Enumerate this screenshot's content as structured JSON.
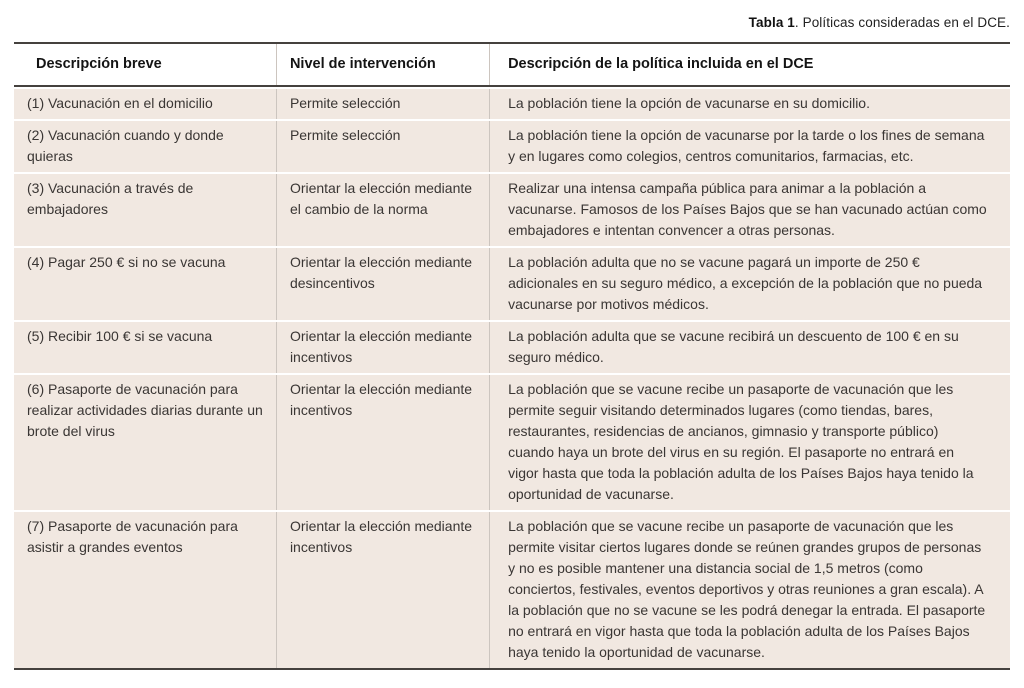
{
  "caption": {
    "label": "Tabla 1",
    "text": ". Políticas consideradas en el DCE."
  },
  "table": {
    "columns": [
      "Descripción breve",
      "Nivel de intervención",
      "Descripción de la política incluida en el DCE"
    ],
    "rows": [
      {
        "breve": "(1) Vacunación en el domicilio",
        "nivel": "Permite selección",
        "descripcion": "La población tiene la opción de vacunarse en su domicilio."
      },
      {
        "breve": "(2) Vacunación cuando y donde quieras",
        "nivel": "Permite selección",
        "descripcion": "La población tiene la opción de vacunarse por la tarde o los fines de semana y en lugares como colegios, centros comunitarios, farmacias, etc."
      },
      {
        "breve": "(3) Vacunación a través de embajadores",
        "nivel": "Orientar la elección mediante el cambio de la norma",
        "descripcion": "Realizar una intensa campaña pública para animar a la población a vacunarse. Famosos de los Países Bajos que se han vacunado actúan como embajadores e intentan convencer a otras personas."
      },
      {
        "breve": "(4) Pagar 250 € si no se vacuna",
        "nivel": "Orientar la elección mediante desincentivos",
        "descripcion": "La población adulta que no se vacune pagará un importe de 250 € adicionales en su seguro médico, a excepción de la población que no pueda vacunarse por motivos médicos."
      },
      {
        "breve": "(5) Recibir 100 € si se vacuna",
        "nivel": "Orientar la elección mediante incentivos",
        "descripcion": "La población adulta que se vacune recibirá un descuento de 100 € en su seguro médico."
      },
      {
        "breve": "(6) Pasaporte de vacunación para realizar actividades diarias durante un brote del virus",
        "nivel": "Orientar la elección mediante incentivos",
        "descripcion": "La población que se vacune recibe un pasaporte de vacunación que les permite seguir visitando determinados lugares (como tiendas, bares, restaurantes, residencias de ancianos, gimnasio y transporte público) cuando haya un brote del virus en su región. El pasaporte no entrará en vigor hasta que toda la población adulta de los Países Bajos haya tenido la oportunidad de vacunarse."
      },
      {
        "breve": "(7) Pasaporte de vacunación para asistir a grandes eventos",
        "nivel": "Orientar la elección mediante incentivos",
        "descripcion": "La población que se vacune recibe un pasaporte de vacunación que les permite visitar ciertos lugares donde se reúnen grandes grupos de personas y no es posible mantener una distancia social de 1,5 metros (como conciertos, festivales, eventos deportivos y otras reuniones a gran escala). A la población que no se vacune se les podrá denegar la entrada. El pasaporte no entrará en vigor hasta que toda la población adulta de los Países Bajos haya tenido la oportunidad de vacunarse."
      }
    ]
  },
  "colors": {
    "row_bg": "#f1e8e1",
    "row_gap": "#ffffff",
    "rule_dark": "#45413e",
    "separator": "#ccc5bf",
    "text": "#3a3634"
  }
}
